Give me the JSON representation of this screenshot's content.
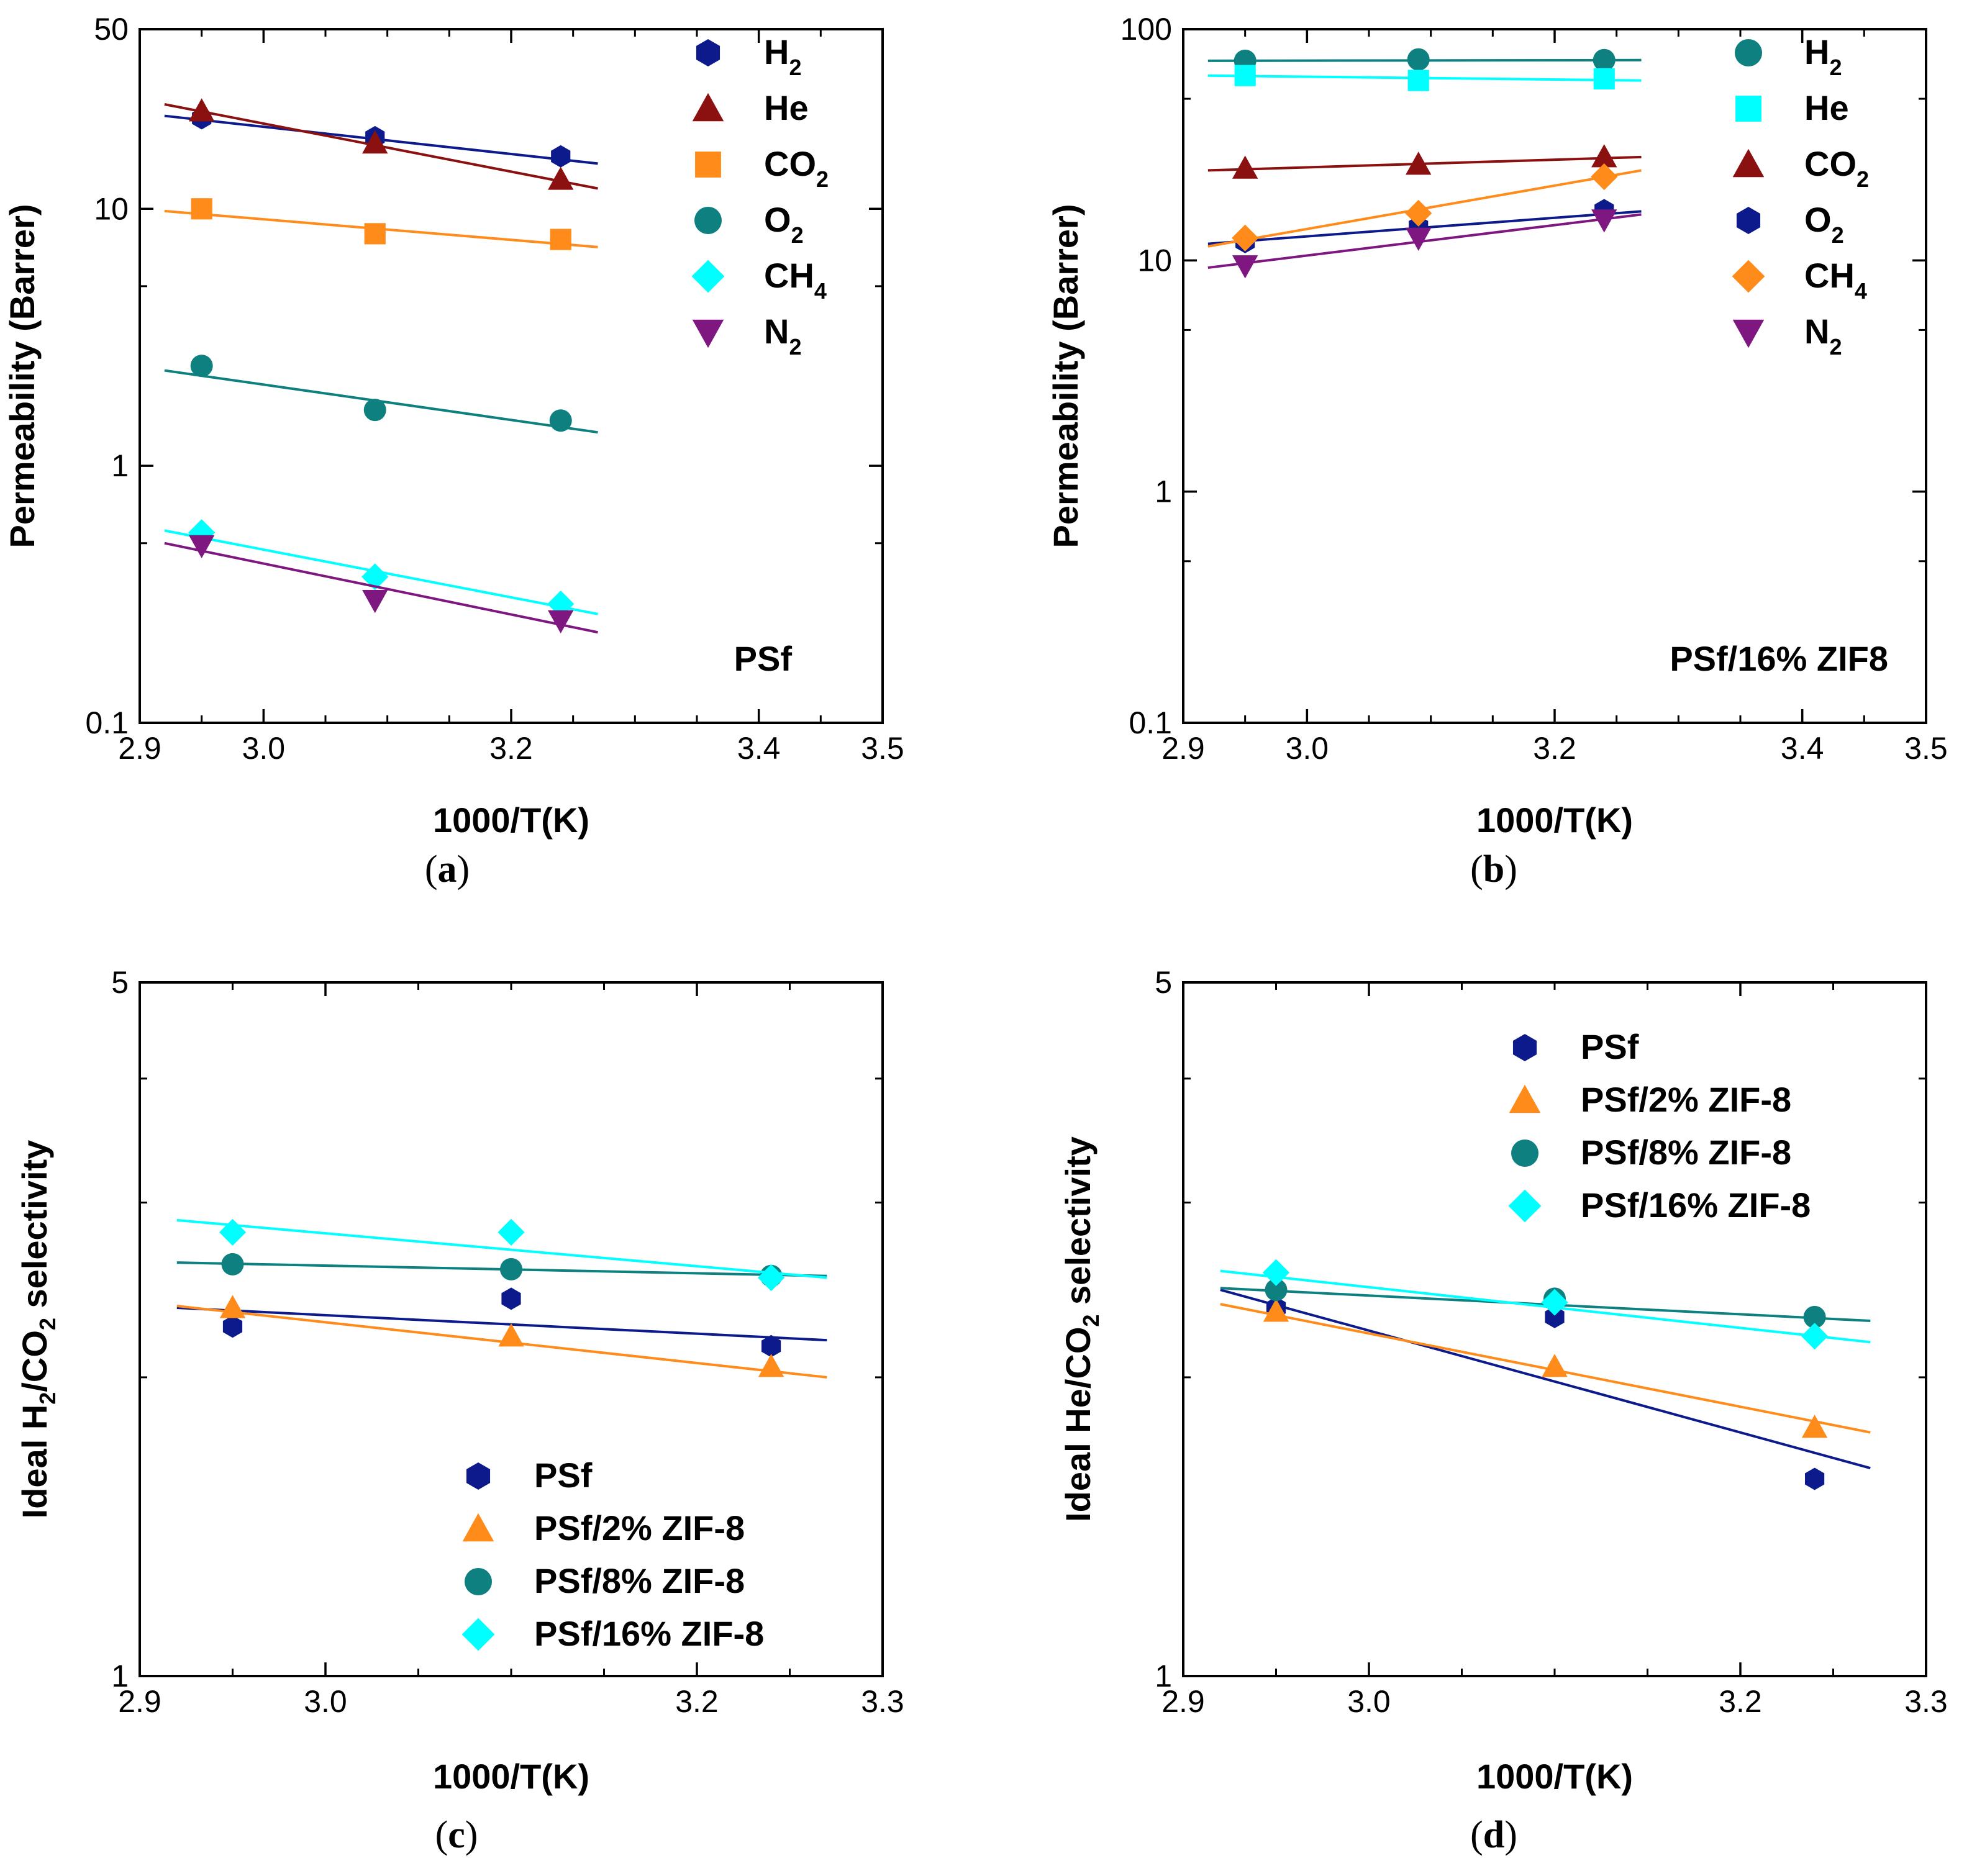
{
  "chart_data": [
    {
      "type": "scatter",
      "caption": "a",
      "xlabel": "1000/T(K)",
      "ylabel": "Permeability (Barrer)",
      "yscale": "log",
      "xlim": [
        2.9,
        3.5
      ],
      "ylim": [
        0.1,
        50
      ],
      "xticks": [
        "2.9",
        "3.0",
        "3.2",
        "3.4",
        "3.5"
      ],
      "xtick_values": [
        2.9,
        3.0,
        3.2,
        3.4,
        3.5
      ],
      "yticks": [
        "0.1",
        "1",
        "10",
        "50"
      ],
      "ytick_values": [
        0.1,
        1,
        10,
        50
      ],
      "annotation": "PSf",
      "fit_x": [
        2.92,
        3.27
      ],
      "series": [
        {
          "name": "H",
          "sub": "2",
          "marker": "hexagon",
          "color": "#0d1a8c",
          "x": [
            2.95,
            3.09,
            3.24
          ],
          "y": [
            22.5,
            19.0,
            16.0
          ],
          "fit_y": [
            23.0,
            15.0
          ]
        },
        {
          "name": "He",
          "sub": "",
          "marker": "triangle-up",
          "color": "#8b1010",
          "x": [
            2.95,
            3.09,
            3.24
          ],
          "y": [
            24.0,
            18.0,
            13.0
          ],
          "fit_y": [
            25.5,
            12.0
          ]
        },
        {
          "name": "CO",
          "sub": "2",
          "marker": "square",
          "color": "#ff8c1a",
          "x": [
            2.95,
            3.09,
            3.24
          ],
          "y": [
            10.0,
            8.0,
            7.6
          ],
          "fit_y": [
            9.8,
            7.1
          ]
        },
        {
          "name": "O",
          "sub": "2",
          "marker": "circle",
          "color": "#0e8080",
          "x": [
            2.95,
            3.09,
            3.24
          ],
          "y": [
            2.45,
            1.65,
            1.5
          ],
          "fit_y": [
            2.35,
            1.35
          ]
        },
        {
          "name": "CH",
          "sub": "4",
          "marker": "diamond",
          "color": "#00ffff",
          "x": [
            2.95,
            3.09,
            3.24
          ],
          "y": [
            0.55,
            0.37,
            0.29
          ],
          "fit_y": [
            0.56,
            0.265
          ]
        },
        {
          "name": "N",
          "sub": "2",
          "marker": "triangle-down",
          "color": "#7f1780",
          "x": [
            2.95,
            3.09,
            3.24
          ],
          "y": [
            0.49,
            0.3,
            0.25
          ],
          "fit_y": [
            0.5,
            0.225
          ]
        }
      ]
    },
    {
      "type": "scatter",
      "caption": "b",
      "xlabel": "1000/T(K)",
      "ylabel": "Permeability (Barrer)",
      "yscale": "log",
      "xlim": [
        2.9,
        3.5
      ],
      "ylim": [
        0.1,
        100
      ],
      "xticks": [
        "2.9",
        "3.0",
        "3.2",
        "3.4",
        "3.5"
      ],
      "xtick_values": [
        2.9,
        3.0,
        3.2,
        3.4,
        3.5
      ],
      "yticks": [
        "0.1",
        "1",
        "10",
        "100"
      ],
      "ytick_values": [
        0.1,
        1,
        10,
        100
      ],
      "annotation": "PSf/16% ZIF8",
      "fit_x": [
        2.92,
        3.27
      ],
      "series": [
        {
          "name": "H",
          "sub": "2",
          "marker": "circle",
          "color": "#0e8080",
          "x": [
            2.95,
            3.09,
            3.24
          ],
          "y": [
            73.0,
            74.0,
            73.5
          ],
          "fit_y": [
            73.0,
            73.5
          ]
        },
        {
          "name": "He",
          "sub": "",
          "marker": "square",
          "color": "#00ffff",
          "x": [
            2.95,
            3.09,
            3.24
          ],
          "y": [
            63.0,
            60.0,
            61.0
          ],
          "fit_y": [
            63.0,
            60.0
          ]
        },
        {
          "name": "CO",
          "sub": "2",
          "marker": "triangle-up",
          "color": "#8b1010",
          "x": [
            2.95,
            3.09,
            3.24
          ],
          "y": [
            25.0,
            26.0,
            28.0
          ],
          "fit_y": [
            24.5,
            28.0
          ]
        },
        {
          "name": "O",
          "sub": "2",
          "marker": "hexagon",
          "color": "#0d1a8c",
          "x": [
            2.95,
            3.09,
            3.24
          ],
          "y": [
            12.0,
            14.0,
            16.5
          ],
          "fit_y": [
            11.8,
            16.3
          ]
        },
        {
          "name": "CH",
          "sub": "4",
          "marker": "diamond",
          "color": "#ff8c1a",
          "x": [
            2.95,
            3.09,
            3.24
          ],
          "y": [
            12.5,
            16.0,
            23.0
          ],
          "fit_y": [
            11.5,
            24.5
          ]
        },
        {
          "name": "N",
          "sub": "2",
          "marker": "triangle-down",
          "color": "#7f1780",
          "x": [
            2.95,
            3.09,
            3.24
          ],
          "y": [
            9.5,
            12.5,
            15.0
          ],
          "fit_y": [
            9.3,
            15.8
          ]
        }
      ]
    },
    {
      "type": "scatter",
      "caption": "c",
      "xlabel": "1000/T(K)",
      "ylabel_parts": [
        "Ideal H",
        "2",
        "/CO",
        "2",
        " selectivity"
      ],
      "yscale": "log",
      "xlim": [
        2.9,
        3.3
      ],
      "ylim": [
        1,
        5
      ],
      "xticks": [
        "2.9",
        "3.0",
        "3.2",
        "3.3"
      ],
      "xtick_values": [
        2.9,
        3.0,
        3.2,
        3.3
      ],
      "yticks": [
        "1",
        "5"
      ],
      "ytick_values": [
        1,
        5
      ],
      "minor_yticks": [
        2,
        3,
        4
      ],
      "fit_x": [
        2.92,
        3.27
      ],
      "series": [
        {
          "name": "PSf",
          "marker": "hexagon",
          "color": "#0d1a8c",
          "x": [
            2.95,
            3.1,
            3.24
          ],
          "y": [
            2.25,
            2.4,
            2.15
          ],
          "fit_y": [
            2.35,
            2.18
          ]
        },
        {
          "name": "PSf/2% ZIF-8",
          "marker": "triangle-up",
          "color": "#ff8c1a",
          "x": [
            2.95,
            3.1,
            3.24
          ],
          "y": [
            2.35,
            2.2,
            2.05
          ],
          "fit_y": [
            2.36,
            2.0
          ]
        },
        {
          "name": "PSf/8% ZIF-8",
          "marker": "circle",
          "color": "#0e8080",
          "x": [
            2.95,
            3.1,
            3.24
          ],
          "y": [
            2.6,
            2.57,
            2.53
          ],
          "fit_y": [
            2.61,
            2.53
          ]
        },
        {
          "name": "PSf/16% ZIF-8",
          "marker": "diamond",
          "color": "#00ffff",
          "x": [
            2.95,
            3.1,
            3.24
          ],
          "y": [
            2.8,
            2.8,
            2.52
          ],
          "fit_y": [
            2.88,
            2.52
          ]
        }
      ]
    },
    {
      "type": "scatter",
      "caption": "d",
      "xlabel": "1000/T(K)",
      "ylabel_parts": [
        "Ideal He/CO",
        "2",
        " selectivity"
      ],
      "yscale": "log",
      "xlim": [
        2.9,
        3.3
      ],
      "ylim": [
        1,
        5
      ],
      "xticks": [
        "2.9",
        "3.0",
        "3.2",
        "3.3"
      ],
      "xtick_values": [
        2.9,
        3.0,
        3.2,
        3.3
      ],
      "yticks": [
        "1",
        "5"
      ],
      "ytick_values": [
        1,
        5
      ],
      "minor_yticks": [
        2,
        3,
        4
      ],
      "fit_x": [
        2.92,
        3.27
      ],
      "series": [
        {
          "name": "PSf",
          "marker": "hexagon",
          "color": "#0d1a8c",
          "x": [
            2.95,
            3.1,
            3.24
          ],
          "y": [
            2.35,
            2.3,
            1.58
          ],
          "fit_y": [
            2.45,
            1.62
          ]
        },
        {
          "name": "PSf/2% ZIF-8",
          "marker": "triangle-up",
          "color": "#ff8c1a",
          "x": [
            2.95,
            3.1,
            3.24
          ],
          "y": [
            2.33,
            2.05,
            1.78
          ],
          "fit_y": [
            2.37,
            1.76
          ]
        },
        {
          "name": "PSf/8% ZIF-8",
          "marker": "circle",
          "color": "#0e8080",
          "x": [
            2.95,
            3.1,
            3.24
          ],
          "y": [
            2.45,
            2.4,
            2.3
          ],
          "fit_y": [
            2.46,
            2.28
          ]
        },
        {
          "name": "PSf/16% ZIF-8",
          "marker": "diamond",
          "color": "#00ffff",
          "x": [
            2.95,
            3.1,
            3.24
          ],
          "y": [
            2.55,
            2.38,
            2.2
          ],
          "fit_y": [
            2.56,
            2.17
          ]
        }
      ]
    }
  ]
}
